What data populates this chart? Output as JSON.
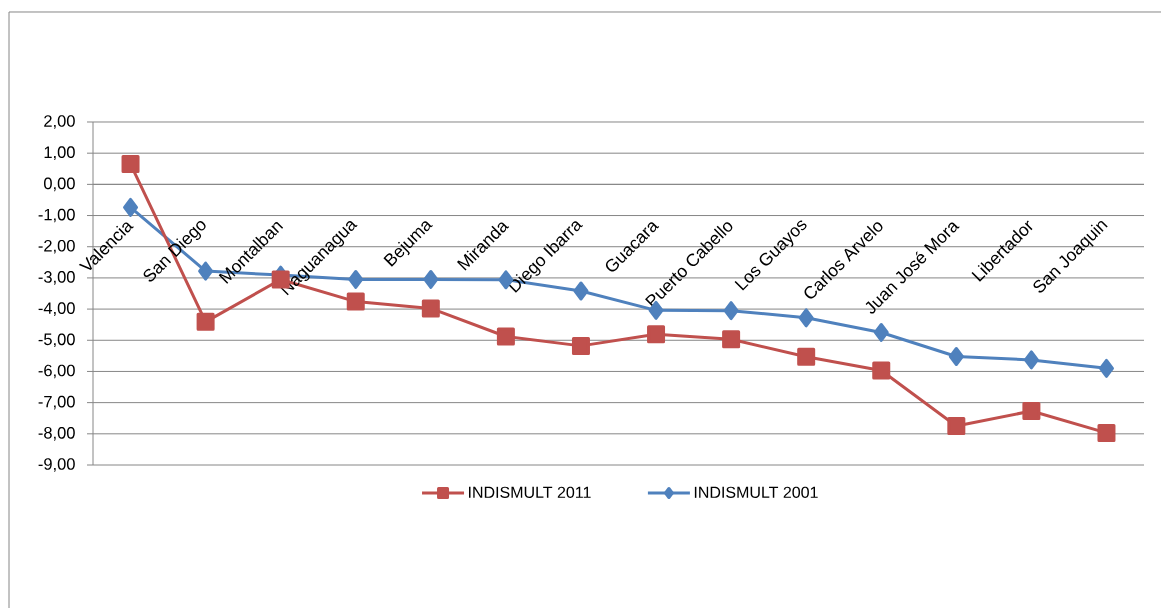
{
  "chart_data": {
    "type": "line",
    "categories": [
      "Valencia",
      "San Diego",
      "Montalban",
      "Naguanagua",
      "Bejuma",
      "Miranda",
      "Diego Ibarra",
      "Guacara",
      "Puerto Cabello",
      "Los Guayos",
      "Carlos Arvelo",
      "Juan José Mora",
      "Libertador",
      "San Joaquin"
    ],
    "series": [
      {
        "name": "INDISMULT 2011",
        "color": "#c0504d",
        "marker": "square",
        "values": [
          0.65,
          -4.41,
          -3.05,
          -3.76,
          -3.98,
          -4.88,
          -5.18,
          -4.81,
          -4.97,
          -5.53,
          -5.97,
          -7.75,
          -7.27,
          -7.97
        ]
      },
      {
        "name": "INDISMULT 2001",
        "color": "#4f81bd",
        "marker": "diamond",
        "values": [
          -0.74,
          -2.78,
          -2.91,
          -3.05,
          -3.05,
          -3.06,
          -3.42,
          -4.04,
          -4.05,
          -4.28,
          -4.75,
          -5.52,
          -5.63,
          -5.9
        ]
      }
    ],
    "ylim": [
      -9,
      2
    ],
    "yticks": [
      {
        "value": -9,
        "label": "-9,00"
      },
      {
        "value": -8,
        "label": "-8,00"
      },
      {
        "value": -7,
        "label": "-7,00"
      },
      {
        "value": -6,
        "label": "-6,00"
      },
      {
        "value": -5,
        "label": "-5,00"
      },
      {
        "value": -4,
        "label": "-4,00"
      },
      {
        "value": -3,
        "label": "-3,00"
      },
      {
        "value": -2,
        "label": "-2,00"
      },
      {
        "value": -1,
        "label": "-1,00"
      },
      {
        "value": 0,
        "label": "0,00"
      },
      {
        "value": 1,
        "label": "1,00"
      },
      {
        "value": 2,
        "label": "2,00"
      }
    ],
    "grid": "y",
    "legend": "bottom"
  }
}
